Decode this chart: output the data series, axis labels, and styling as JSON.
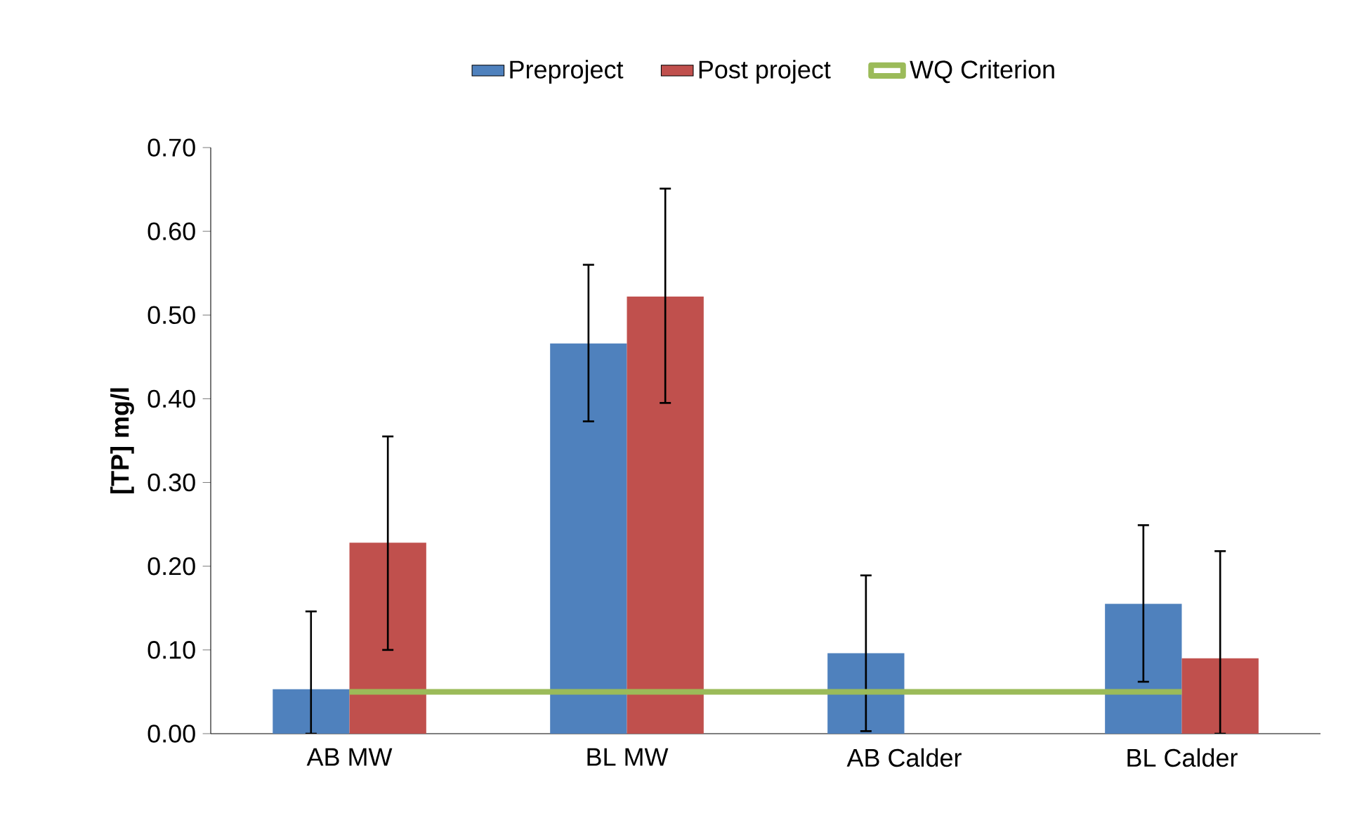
{
  "chart_data": {
    "type": "bar",
    "ylabel": "[TP] mg/l",
    "categories": [
      "AB MW",
      "BL MW",
      "AB Calder",
      "BL Calder"
    ],
    "series": [
      {
        "name": "Preproject",
        "color": "#4f81bd",
        "values": [
          0.053,
          0.466,
          0.096,
          0.155
        ],
        "errors": [
          [
            0,
            0.146
          ],
          [
            0.373,
            0.56
          ],
          [
            0.003,
            0.189
          ],
          [
            0.062,
            0.249
          ]
        ]
      },
      {
        "name": "Post project",
        "color": "#c0504d",
        "values": [
          0.228,
          0.522,
          null,
          0.09
        ],
        "errors": [
          [
            0.1,
            0.355
          ],
          [
            0.395,
            0.651
          ],
          null,
          [
            0,
            0.218
          ]
        ]
      },
      {
        "name": "WQ Criterion",
        "type": "line",
        "color": "#9bbb59",
        "values": [
          0.05,
          0.05,
          0.05,
          0.05
        ]
      }
    ],
    "ylim": [
      0,
      0.7
    ],
    "yticks": [
      {
        "value": 0,
        "label": "0.00"
      },
      {
        "value": 0.1,
        "label": "0.10"
      },
      {
        "value": 0.2,
        "label": "0.20"
      },
      {
        "value": 0.3,
        "label": "0.30"
      },
      {
        "value": 0.4,
        "label": "0.40"
      },
      {
        "value": 0.5,
        "label": "0.50"
      },
      {
        "value": 0.6,
        "label": "0.60"
      },
      {
        "value": 0.7,
        "label": "0.70"
      }
    ],
    "grid": false,
    "legend": "top"
  }
}
